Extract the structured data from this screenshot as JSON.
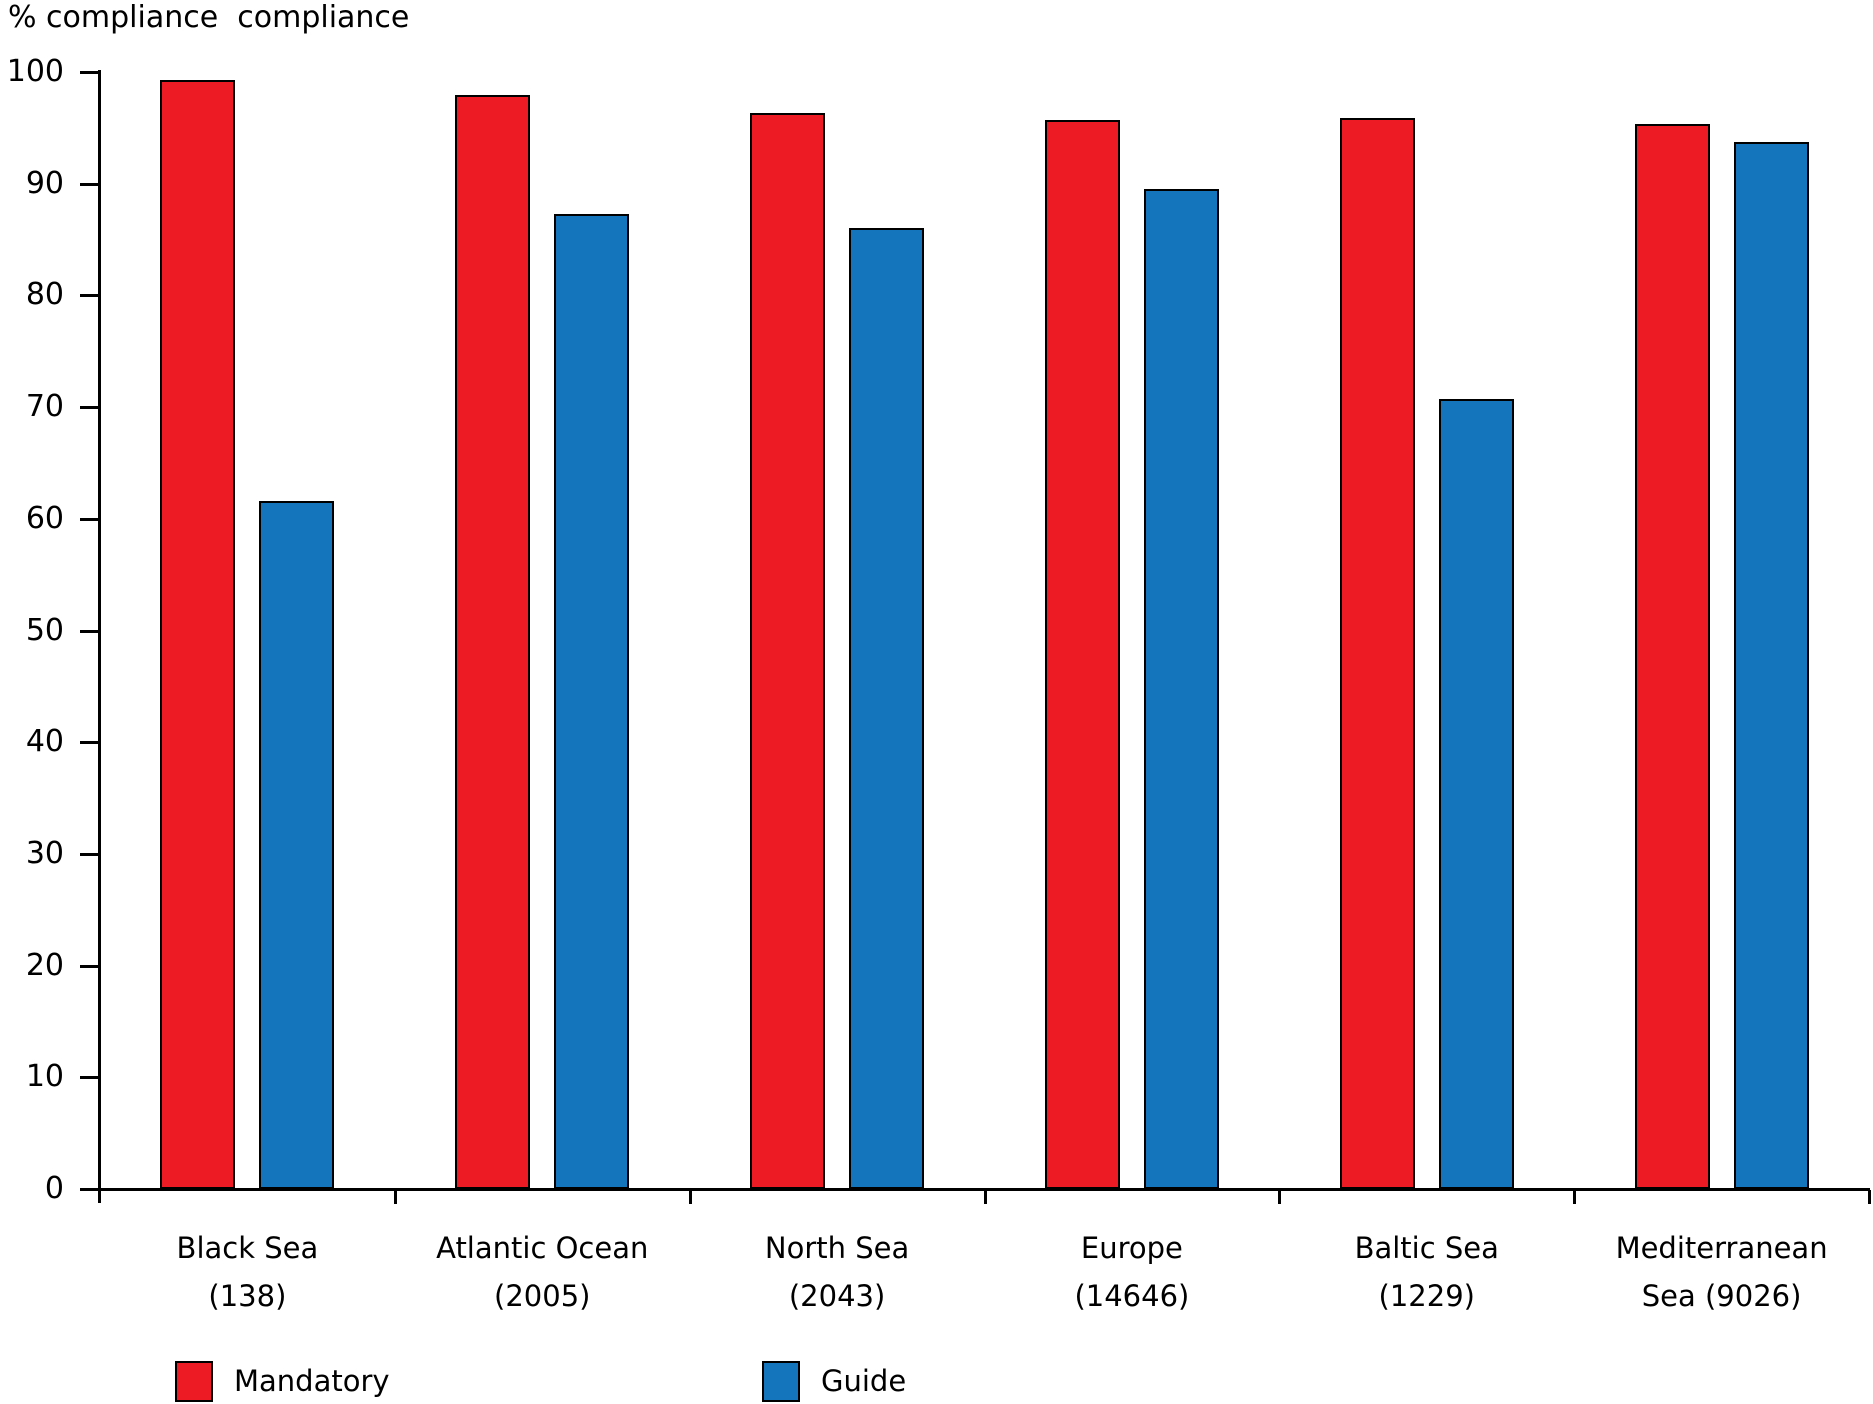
{
  "title": "% compliance  compliance",
  "colors": {
    "mandatory": "#ED1C24",
    "guide": "#1474BC",
    "axis": "#000000",
    "background": "#FFFFFF"
  },
  "chart_data": {
    "type": "bar",
    "title": "% compliance  compliance",
    "xlabel": "",
    "ylabel": "% compliance",
    "ylim": [
      0,
      100
    ],
    "yticks": [
      0,
      10,
      20,
      30,
      40,
      50,
      60,
      70,
      80,
      90,
      100
    ],
    "grid": false,
    "legend_position": "bottom",
    "categories": [
      "Black Sea (138)",
      "Atlantic Ocean (2005)",
      "North Sea (2043)",
      "Europe (14646)",
      "Baltic Sea (1229)",
      "Mediterranean Sea (9026)"
    ],
    "category_lines": [
      [
        "Black Sea",
        "(138)"
      ],
      [
        "Atlantic Ocean",
        "(2005)"
      ],
      [
        "North Sea",
        "(2043)"
      ],
      [
        "Europe",
        "(14646)"
      ],
      [
        "Baltic Sea",
        "(1229)"
      ],
      [
        "Mediterranean",
        "Sea (9026)"
      ]
    ],
    "counts": [
      138,
      2005,
      2043,
      14646,
      1229,
      9026
    ],
    "series": [
      {
        "name": "Mandatory",
        "color": "#ED1C24",
        "values": [
          99.3,
          97.9,
          96.3,
          95.7,
          95.9,
          95.3
        ]
      },
      {
        "name": "Guide",
        "color": "#1474BC",
        "values": [
          61.6,
          87.3,
          86.0,
          89.5,
          70.7,
          93.7
        ]
      }
    ]
  }
}
